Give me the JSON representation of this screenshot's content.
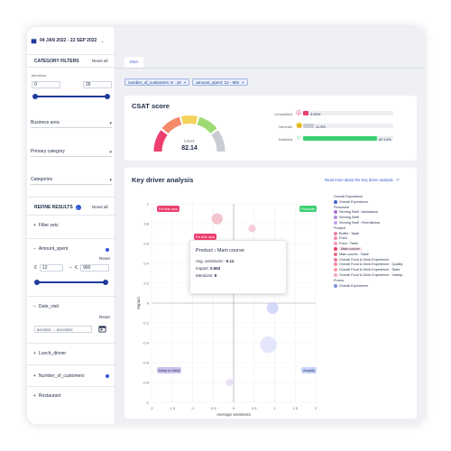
{
  "date_range": "04 JAN 2022 - 22 SEP 2022",
  "sidebar": {
    "category_filters_title": "CATEGORY FILTERS",
    "reset_all": "Reset all",
    "mentions_label": "Mentions",
    "mentions_min": "0",
    "mentions_max": "26",
    "business_area": "Business area",
    "primary_category": "Primary category",
    "categories": "Categories",
    "refine_results_title": "REFINE RESULTS",
    "refine_info": "i",
    "refine_reset_all": "Reset all",
    "filter_sets": "Filter sets",
    "amount_spent": "Amount_spent",
    "amount_reset": "Reset",
    "amount_min": "12",
    "amount_max": "900",
    "currency": "€",
    "date_visit": "Date_visit",
    "date_reset": "Reset",
    "date_value": "5/1/2022  →  5/12/2022",
    "lunch_dinner": "Lunch_dinner",
    "number_of_customers": "Number_of_customers",
    "restaurant": "Restaurant"
  },
  "tabs": [
    "KDA"
  ],
  "chips": [
    "number_of_customers: 8 - 10",
    "amount_spent: 12 - 900"
  ],
  "csat": {
    "title": "CSAT score",
    "gauge_label": "CSAT",
    "gauge_value": "82.14",
    "gauge_fraction": 0.82,
    "rows": [
      {
        "label": "Unsatisfied",
        "value": "5.95%",
        "fraction": 0.0595,
        "color": "#e83e6c"
      },
      {
        "label": "Neutrals",
        "value": "11.9%",
        "fraction": 0.119,
        "color": "#c8cbd2"
      },
      {
        "label": "Satisfied",
        "value": "82.14%",
        "fraction": 0.8214,
        "color": "#3ccf72"
      }
    ]
  },
  "kda": {
    "title": "Key driver analysis",
    "read_more": "Read more about the Key driver analysis",
    "quadrants": {
      "fix": "Fix this now",
      "promote": "Promote",
      "keep": "Keep in mind",
      "amplify": "Amplify"
    },
    "tooltip": {
      "badge": "Fix this now",
      "title": "Product › Main course",
      "avg_label": "Avg. sentiment:",
      "avg_value": "-0.12",
      "impact_label": "Impact:",
      "impact_value": "0.563",
      "mentions_label": "Mentions:",
      "mentions_value": "8"
    },
    "xlabel": "Average sentiment",
    "ylabel": "Impact"
  },
  "chart_data": {
    "type": "scatter",
    "xlabel": "Average sentiment",
    "ylabel": "Impact",
    "xlim": [
      -2,
      2
    ],
    "ylim": [
      -1,
      1
    ],
    "x_ticks": [
      "-2",
      "-1.5",
      "-1",
      "-0.5",
      "0",
      "0.5",
      "1",
      "1.5",
      "2"
    ],
    "y_ticks": [
      "1",
      "0.8",
      "0.6",
      "0.4",
      "0.2",
      "0",
      "-0.2",
      "-0.4",
      "-0.6",
      "-0.8",
      "-1"
    ],
    "points": [
      {
        "x": -0.4,
        "y": 0.85,
        "r": 0.18,
        "color": "#f3b8c6"
      },
      {
        "x": 0.45,
        "y": 0.75,
        "r": 0.12,
        "color": "#f4c4d2"
      },
      {
        "x": 0.15,
        "y": 0.55,
        "r": 0.2,
        "color": "#f5bccb"
      },
      {
        "x": -0.12,
        "y": 0.56,
        "r": 0.16,
        "color": "#ec3f6e"
      },
      {
        "x": 0.35,
        "y": 0.3,
        "r": 0.2,
        "color": "#d8d4e6"
      },
      {
        "x": 0.55,
        "y": 0.2,
        "r": 0.2,
        "color": "#f2c9d6"
      },
      {
        "x": 0.3,
        "y": 0.15,
        "r": 0.17,
        "color": "#c9e3d3"
      },
      {
        "x": 1.0,
        "y": 0.35,
        "r": 0.17,
        "color": "#d7d7f7"
      },
      {
        "x": 0.95,
        "y": -0.05,
        "r": 0.19,
        "color": "#ccd3f7"
      },
      {
        "x": 0.85,
        "y": -0.42,
        "r": 0.27,
        "color": "#e0e3fb"
      },
      {
        "x": -0.1,
        "y": -0.8,
        "r": 0.12,
        "color": "#e8dcf5"
      },
      {
        "x": -0.3,
        "y": 0.6,
        "r": 0.1,
        "color": "#f3c0cf"
      }
    ]
  },
  "legend": [
    {
      "type": "heading",
      "text": "Overall Experience"
    },
    {
      "type": "item",
      "text": "Overall Experience",
      "color": "#3f63c7"
    },
    {
      "type": "heading",
      "text": "Personnel"
    },
    {
      "type": "item",
      "text": "Serving Staff : Assistance",
      "color": "#a675d6"
    },
    {
      "type": "item",
      "text": "Serving Staff",
      "color": "#b48ae0"
    },
    {
      "type": "item",
      "text": "Serving Staff : Friendliness",
      "color": "#c5a4e8"
    },
    {
      "type": "heading",
      "text": "Product"
    },
    {
      "type": "item",
      "text": "Buffet : Taste",
      "color": "#f080a0"
    },
    {
      "type": "item",
      "text": "Food",
      "color": "#f290aa"
    },
    {
      "type": "item",
      "text": "Food : Taste",
      "color": "#f4a0b6"
    },
    {
      "type": "item",
      "text": "Main course",
      "color": "#e83e6c",
      "highlight": true
    },
    {
      "type": "item",
      "text": "Main course : Taste",
      "color": "#ee6a8c"
    },
    {
      "type": "item",
      "text": "Overall Food & Drink Experience",
      "color": "#f27898"
    },
    {
      "type": "item",
      "text": "Overall Food & Drink Experience : Quality",
      "color": "#f4889f"
    },
    {
      "type": "item",
      "text": "Overall Food & Drink Experience : Taste",
      "color": "#f697ac"
    },
    {
      "type": "item",
      "text": "Overall Food & Drink Experience : Variety",
      "color": "#f8a6b8"
    },
    {
      "type": "heading",
      "text": "Promo"
    },
    {
      "type": "item",
      "text": "Overall Experience",
      "color": "#7b8ee0"
    }
  ]
}
